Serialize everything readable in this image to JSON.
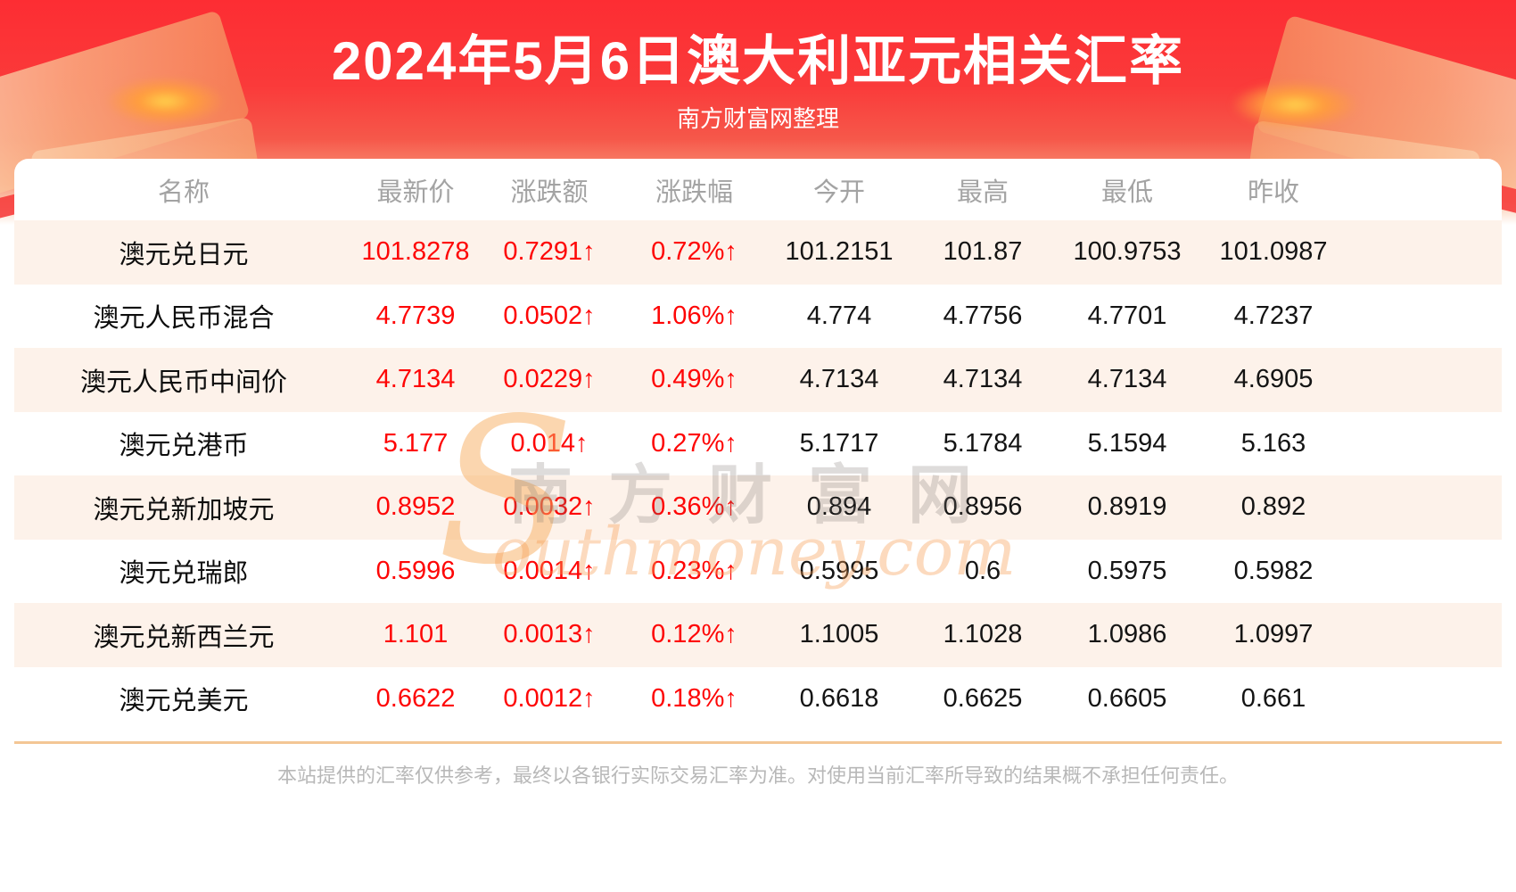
{
  "header": {
    "title": "2024年5月6日澳大利亚元相关汇率",
    "subtitle": "南方财富网整理"
  },
  "chart_data": {
    "type": "table",
    "title": "2024年5月6日澳大利亚元相关汇率",
    "columns": [
      "名称",
      "最新价",
      "涨跌额",
      "涨跌幅",
      "今开",
      "最高",
      "最低",
      "昨收"
    ],
    "rows": [
      {
        "name": "澳元兑日元",
        "latest": "101.8278",
        "change": "0.7291↑",
        "change_pct": "0.72%↑",
        "open": "101.2151",
        "high": "101.87",
        "low": "100.9753",
        "prev_close": "101.0987"
      },
      {
        "name": "澳元人民币混合",
        "latest": "4.7739",
        "change": "0.0502↑",
        "change_pct": "1.06%↑",
        "open": "4.774",
        "high": "4.7756",
        "low": "4.7701",
        "prev_close": "4.7237"
      },
      {
        "name": "澳元人民币中间价",
        "latest": "4.7134",
        "change": "0.0229↑",
        "change_pct": "0.49%↑",
        "open": "4.7134",
        "high": "4.7134",
        "low": "4.7134",
        "prev_close": "4.6905"
      },
      {
        "name": "澳元兑港币",
        "latest": "5.177",
        "change": "0.014↑",
        "change_pct": "0.27%↑",
        "open": "5.1717",
        "high": "5.1784",
        "low": "5.1594",
        "prev_close": "5.163"
      },
      {
        "name": "澳元兑新加坡元",
        "latest": "0.8952",
        "change": "0.0032↑",
        "change_pct": "0.36%↑",
        "open": "0.894",
        "high": "0.8956",
        "low": "0.8919",
        "prev_close": "0.892"
      },
      {
        "name": "澳元兑瑞郎",
        "latest": "0.5996",
        "change": "0.0014↑",
        "change_pct": "0.23%↑",
        "open": "0.5995",
        "high": "0.6",
        "low": "0.5975",
        "prev_close": "0.5982"
      },
      {
        "name": "澳元兑新西兰元",
        "latest": "1.101",
        "change": "0.0013↑",
        "change_pct": "0.12%↑",
        "open": "1.1005",
        "high": "1.1028",
        "low": "1.0986",
        "prev_close": "1.0997"
      },
      {
        "name": "澳元兑美元",
        "latest": "0.6622",
        "change": "0.0012↑",
        "change_pct": "0.18%↑",
        "open": "0.6618",
        "high": "0.6625",
        "low": "0.6605",
        "prev_close": "0.661"
      }
    ]
  },
  "watermark": {
    "initial": "S",
    "cn": "南方财富网",
    "en": "outhmoney.com"
  },
  "footer": {
    "disclaimer": "本站提供的汇率仅供参考，最终以各银行实际交易汇率为准。对使用当前汇率所导致的结果概不承担任何责任。"
  },
  "colors": {
    "banner_red": "#fd2d33",
    "value_red": "#fe0606",
    "row_stripe": "#fdf2ea",
    "header_text_gray": "#a3a3a3",
    "footer_text_gray": "#b8b8b8",
    "divider_orange": "#f3c695"
  }
}
